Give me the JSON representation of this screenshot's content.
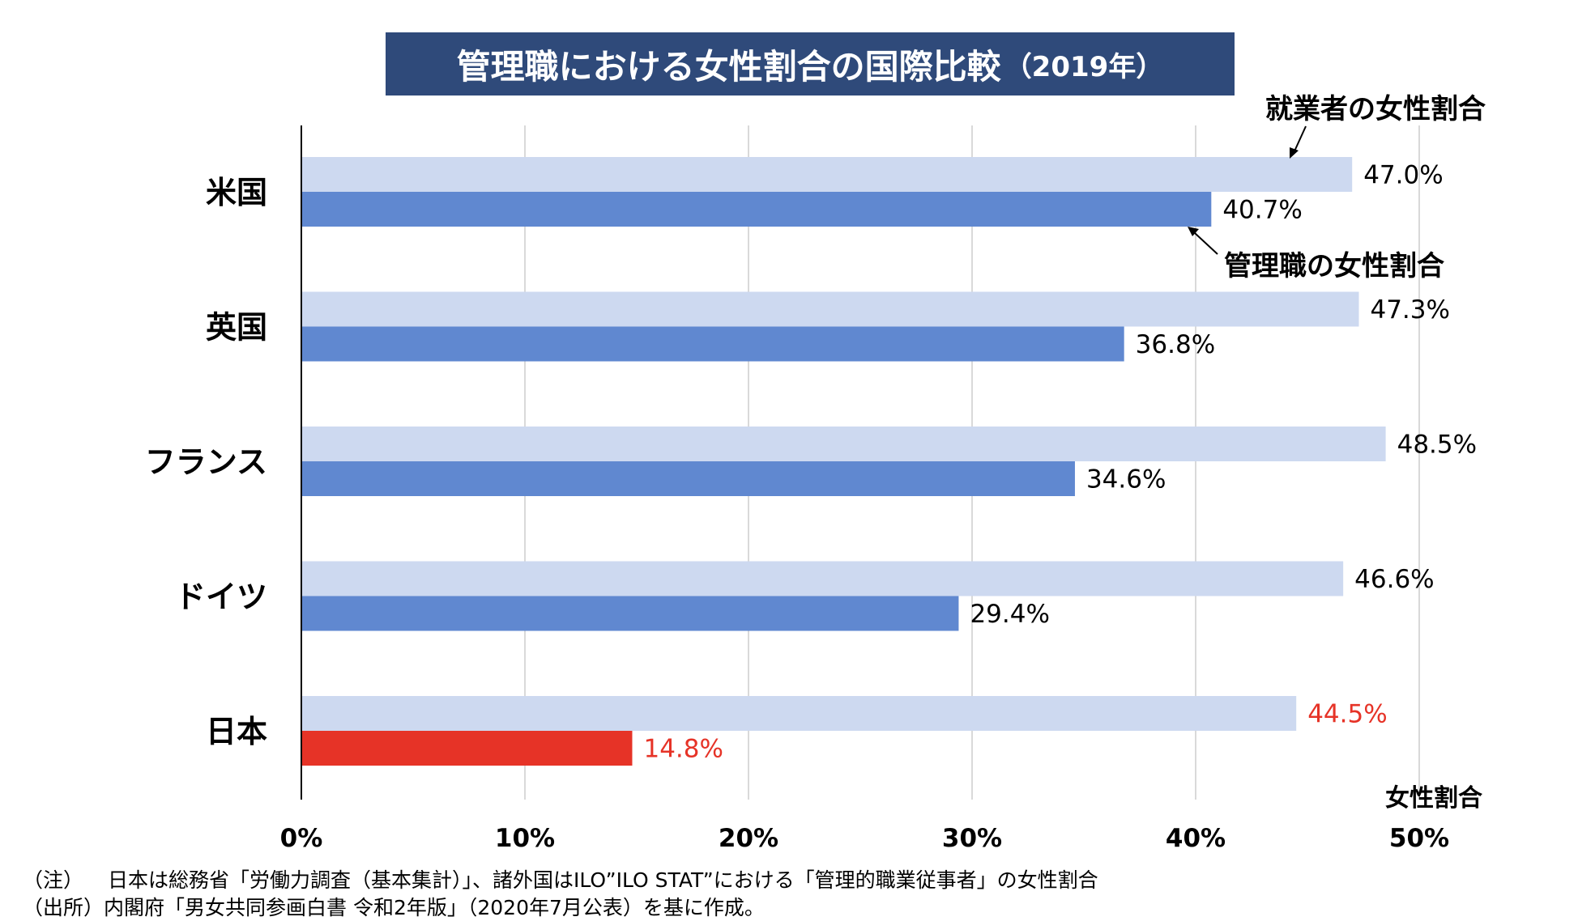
{
  "chart_data": {
    "type": "bar",
    "orientation": "horizontal",
    "title": "管理職における女性割合の国際比較",
    "title_year": "（2019年）",
    "categories": [
      "米国",
      "英国",
      "フランス",
      "ドイツ",
      "日本"
    ],
    "series": [
      {
        "name": "就業者の女性割合",
        "values": [
          47.0,
          47.3,
          48.5,
          46.6,
          44.5
        ],
        "labels": [
          "47.0%",
          "47.3%",
          "48.5%",
          "46.6%",
          "44.5%"
        ],
        "color": "#cdd9f0",
        "highlight_color": "#e63327",
        "highlight_index": 4
      },
      {
        "name": "管理職の女性割合",
        "values": [
          40.7,
          36.8,
          34.6,
          29.4,
          14.8
        ],
        "labels": [
          "40.7%",
          "36.8%",
          "34.6%",
          "29.4%",
          "14.8%"
        ],
        "color": "#6088d0",
        "highlight_color": "#e63327",
        "highlight_index": 4
      }
    ],
    "xlim": [
      0,
      50
    ],
    "xticks": [
      "0%",
      "10%",
      "20%",
      "30%",
      "40%",
      "50%"
    ],
    "xlabel": "女性割合",
    "grid": true,
    "annotations": {
      "employed_label": "就業者の女性割合",
      "manager_label": "管理職の女性割合"
    }
  },
  "notes": [
    {
      "tag": "（注）",
      "text": "日本は総務省「労働力調査（基本集計）」、諸外国はILO”ILO STAT”における「管理的職業従事者」の女性割合"
    },
    {
      "tag": "（出所）",
      "text": "内閣府「男女共同参画白書 令和2年版」（2020年7月公表）を基に作成。"
    }
  ],
  "colors": {
    "title_bg": "#2f4a7a",
    "text": "#000000",
    "highlight": "#e63327",
    "grid": "#d9d9d9"
  }
}
